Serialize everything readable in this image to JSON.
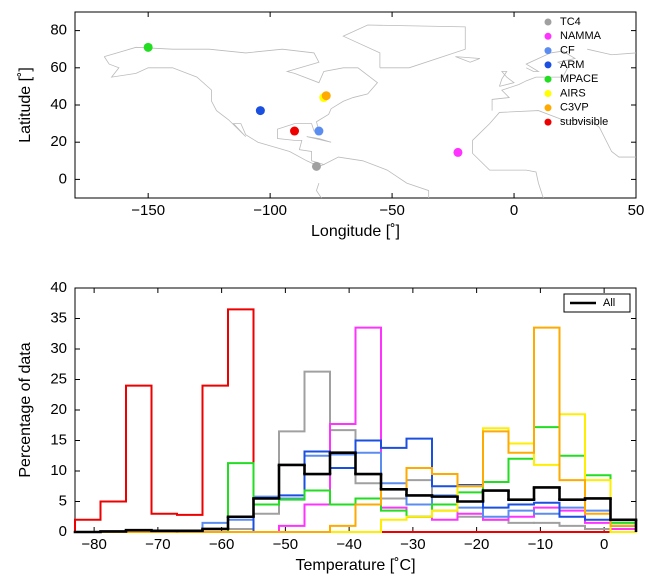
{
  "chart_data": [
    {
      "type": "scatter",
      "xlabel": "Longitude [˚]",
      "ylabel": "Latitude [˚]",
      "xlim": [
        -180,
        50
      ],
      "ylim": [
        -10,
        90
      ],
      "xticks": [
        {
          "value": -150,
          "label": "−150"
        },
        {
          "value": -100,
          "label": "−100"
        },
        {
          "value": -50,
          "label": "−50"
        },
        0,
        50
      ],
      "yticks": [
        0,
        20,
        40,
        60,
        80
      ],
      "legend": "northeast",
      "series": [
        {
          "name": "TC4",
          "color": "#a0a0a0",
          "x": [
            -81
          ],
          "values": [
            7
          ]
        },
        {
          "name": "NAMMA",
          "color": "#ff33ff",
          "x": [
            -23
          ],
          "values": [
            14.5
          ]
        },
        {
          "name": "CF",
          "color": "#5b8cf0",
          "x": [
            -80
          ],
          "values": [
            26
          ]
        },
        {
          "name": "ARM",
          "color": "#1a4fe0",
          "x": [
            -104
          ],
          "values": [
            37
          ]
        },
        {
          "name": "MPACE",
          "color": "#22dd22",
          "x": [
            -150
          ],
          "values": [
            71
          ]
        },
        {
          "name": "AIRS",
          "color": "#ffff00",
          "x": [
            -78
          ],
          "values": [
            44
          ]
        },
        {
          "name": "C3VP",
          "color": "#ffaa00",
          "x": [
            -77
          ],
          "values": [
            45
          ]
        },
        {
          "name": "subvisible",
          "color": "#ee0000",
          "x": [
            -90
          ],
          "values": [
            26
          ]
        }
      ]
    },
    {
      "type": "histogram",
      "xlabel": "Temperature [˚C]",
      "ylabel": "Percentage of data",
      "xlim": [
        -83,
        5
      ],
      "ylim": [
        0,
        40
      ],
      "xticks": [
        {
          "value": -80,
          "label": "−80"
        },
        {
          "value": -70,
          "label": "−70"
        },
        {
          "value": -60,
          "label": "−60"
        },
        {
          "value": -50,
          "label": "−50"
        },
        {
          "value": -40,
          "label": "−40"
        },
        {
          "value": -30,
          "label": "−30"
        },
        {
          "value": -20,
          "label": "−20"
        },
        {
          "value": -10,
          "label": "−10"
        },
        0
      ],
      "yticks": [
        0,
        5,
        10,
        15,
        20,
        25,
        30,
        35,
        40
      ],
      "legend": "northeast",
      "bins": [
        -83,
        -79,
        -75,
        -71,
        -67,
        -63,
        -59,
        -55,
        -51,
        -47,
        -43,
        -39,
        -35,
        -31,
        -27,
        -23,
        -19,
        -15,
        -11,
        -7,
        -3,
        1,
        5
      ],
      "series": [
        {
          "color": "#ee0000",
          "values": [
            2,
            5,
            24,
            3,
            2.8,
            24,
            36.5,
            0,
            0,
            0,
            0,
            0,
            0,
            0,
            0,
            0,
            0,
            0,
            0,
            0,
            0,
            0
          ]
        },
        {
          "color": "#a0a0a0",
          "values": [
            0,
            0,
            0,
            0,
            0,
            0,
            0.5,
            3,
            16.5,
            26.3,
            16.7,
            8,
            5.5,
            8.5,
            3.5,
            2.5,
            2,
            1.5,
            1.5,
            1,
            0.5,
            0
          ]
        },
        {
          "color": "#ff33ff",
          "values": [
            0,
            0,
            0,
            0,
            0,
            0,
            0,
            0,
            1,
            4.5,
            17.7,
            33.5,
            4,
            2.5,
            2,
            3,
            2,
            2.5,
            4,
            3.5,
            1.5,
            0.5
          ]
        },
        {
          "color": "#5b8cf0",
          "values": [
            0,
            0,
            0,
            0,
            0,
            1.5,
            2,
            5.8,
            5.5,
            12.5,
            12.7,
            13,
            8,
            4.5,
            6,
            4,
            2.5,
            3.5,
            3,
            4,
            3.5,
            1
          ]
        },
        {
          "color": "#1a4fe0",
          "values": [
            0,
            0,
            0,
            0,
            0,
            0,
            0,
            5.5,
            6,
            13.2,
            10.5,
            15,
            13.8,
            15.3,
            7.5,
            7.7,
            4,
            4.5,
            4.8,
            2.5,
            2,
            1
          ]
        },
        {
          "color": "#22dd22",
          "values": [
            0,
            0,
            0,
            0,
            0,
            0,
            11.3,
            4.5,
            5.3,
            6.8,
            4.5,
            5.5,
            3.5,
            2.5,
            4.5,
            6.5,
            8.2,
            12,
            17.2,
            12.5,
            9.3,
            1.5
          ]
        },
        {
          "color": "#ffee00",
          "values": [
            0,
            0,
            0,
            0,
            0,
            0,
            0,
            0,
            0,
            0,
            0,
            0,
            2,
            2.5,
            3.5,
            7.5,
            17,
            14.5,
            11,
            19.3,
            8.5,
            0
          ]
        },
        {
          "color": "#ffaa00",
          "values": [
            0,
            0,
            0,
            0,
            0,
            0,
            0,
            0,
            0,
            0,
            1,
            4.5,
            7,
            10.5,
            9.5,
            7.5,
            16.5,
            13,
            33.5,
            8.5,
            3,
            1
          ]
        },
        {
          "name": "All",
          "color": "#000000",
          "values": [
            0,
            0.1,
            0.3,
            0.2,
            0.2,
            0.5,
            2.5,
            5.5,
            11,
            9.5,
            13,
            9.5,
            7,
            6,
            5.8,
            5,
            6.8,
            5.3,
            7.3,
            5.3,
            5.5,
            2
          ]
        }
      ]
    }
  ]
}
